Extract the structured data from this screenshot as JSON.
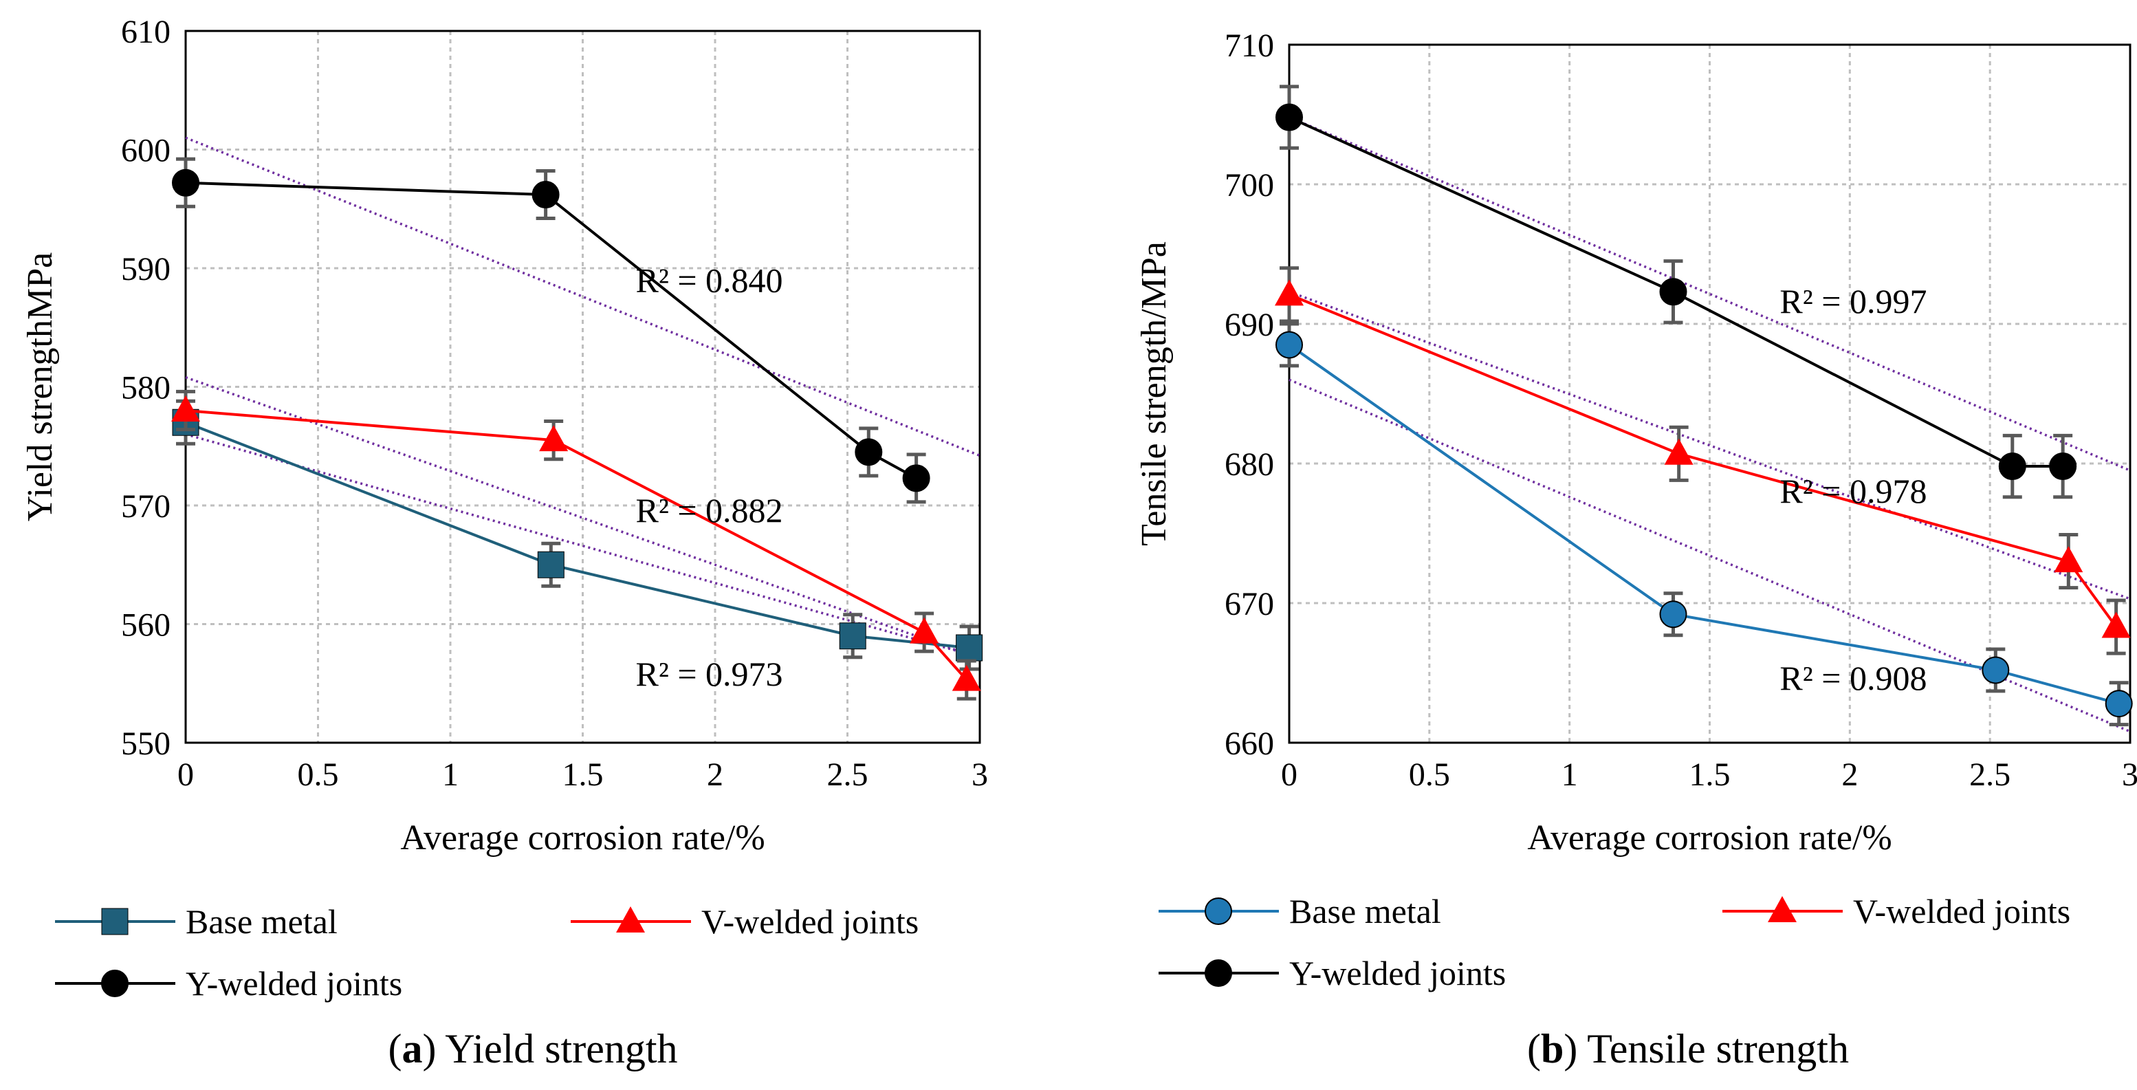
{
  "colors": {
    "base_metal": "#1F5F7A",
    "base_metal_b": "#1F78B4",
    "v_welded": "#FF0000",
    "y_welded": "#000000",
    "trend": "#7030A0",
    "error_bar": "#595959",
    "grid": "#BFBFBF"
  },
  "chart_data": [
    {
      "type": "line",
      "panel": "a",
      "caption_letter": "a",
      "caption_text": "Yield strength",
      "xlabel": "Average corrosion rate/%",
      "ylabel": "Yield strengthMPa",
      "xlim": [
        0,
        3
      ],
      "ylim": [
        550,
        610
      ],
      "xticks": [
        "0",
        "0.5",
        "1",
        "1.5",
        "2",
        "2.5",
        "3"
      ],
      "yticks": [
        "550",
        "560",
        "570",
        "580",
        "590",
        "600",
        "610"
      ],
      "legend": [
        "Base metal",
        "V-welded joints",
        "Y-welded joints"
      ],
      "series": [
        {
          "name": "Base metal",
          "marker": "square",
          "x": [
            0,
            1.38,
            2.52,
            2.96
          ],
          "y": [
            577,
            565,
            559,
            558
          ],
          "err": 1.8
        },
        {
          "name": "V-welded joints",
          "marker": "triangle",
          "x": [
            0,
            1.39,
            2.79,
            2.95
          ],
          "y": [
            578,
            575.5,
            559.3,
            555.3
          ],
          "err": 1.6
        },
        {
          "name": "Y-welded joints",
          "marker": "circle",
          "x": [
            0,
            1.36,
            2.58,
            2.76
          ],
          "y": [
            597.2,
            596.2,
            574.5,
            572.3
          ],
          "err": 2.0
        }
      ],
      "trendlines": [
        {
          "x": [
            0,
            3
          ],
          "y": [
            601,
            574.2
          ]
        },
        {
          "x": [
            0,
            3
          ],
          "y": [
            580.8,
            557.1
          ]
        },
        {
          "x": [
            0,
            3
          ],
          "y": [
            576,
            557.2
          ]
        }
      ],
      "annotations": [
        {
          "text": "R² = 0.840",
          "x": 1.7,
          "y": 588
        },
        {
          "text": "R² = 0.882",
          "x": 1.7,
          "y": 568.6
        },
        {
          "text": "R² = 0.973",
          "x": 1.7,
          "y": 554.8
        }
      ]
    },
    {
      "type": "line",
      "panel": "b",
      "caption_letter": "b",
      "caption_text": "Tensile strength",
      "xlabel": "Average corrosion rate/%",
      "ylabel": "Tensile strength/MPa",
      "xlim": [
        0,
        3
      ],
      "ylim": [
        660,
        710
      ],
      "xticks": [
        "0",
        "0.5",
        "1",
        "1.5",
        "2",
        "2.5",
        "3"
      ],
      "yticks": [
        "660",
        "670",
        "680",
        "690",
        "700",
        "710"
      ],
      "legend": [
        "Base metal",
        "V-welded joints",
        "Y-welded joints"
      ],
      "series": [
        {
          "name": "Base metal",
          "marker": "circle",
          "x": [
            0,
            1.37,
            2.52,
            2.96
          ],
          "y": [
            688.5,
            669.2,
            665.2,
            662.8
          ],
          "err": 1.5
        },
        {
          "name": "V-welded joints",
          "marker": "triangle",
          "x": [
            0,
            1.39,
            2.78,
            2.95
          ],
          "y": [
            692.1,
            680.7,
            673,
            668.3
          ],
          "err": 1.9
        },
        {
          "name": "Y-welded joints",
          "marker": "circle",
          "x": [
            0,
            1.37,
            2.58,
            2.76
          ],
          "y": [
            704.8,
            692.3,
            679.8,
            679.8
          ],
          "err": 2.2
        }
      ],
      "trendlines": [
        {
          "x": [
            0,
            3
          ],
          "y": [
            704.8,
            679.5
          ]
        },
        {
          "x": [
            0,
            3
          ],
          "y": [
            692.3,
            670.3
          ]
        },
        {
          "x": [
            0,
            3
          ],
          "y": [
            686,
            660.8
          ]
        }
      ],
      "annotations": [
        {
          "text": "R² = 0.997",
          "x": 1.75,
          "y": 690.8
        },
        {
          "text": "R² = 0.978",
          "x": 1.75,
          "y": 677.2
        },
        {
          "text": "R² = 0.908",
          "x": 1.75,
          "y": 663.8
        }
      ]
    }
  ]
}
